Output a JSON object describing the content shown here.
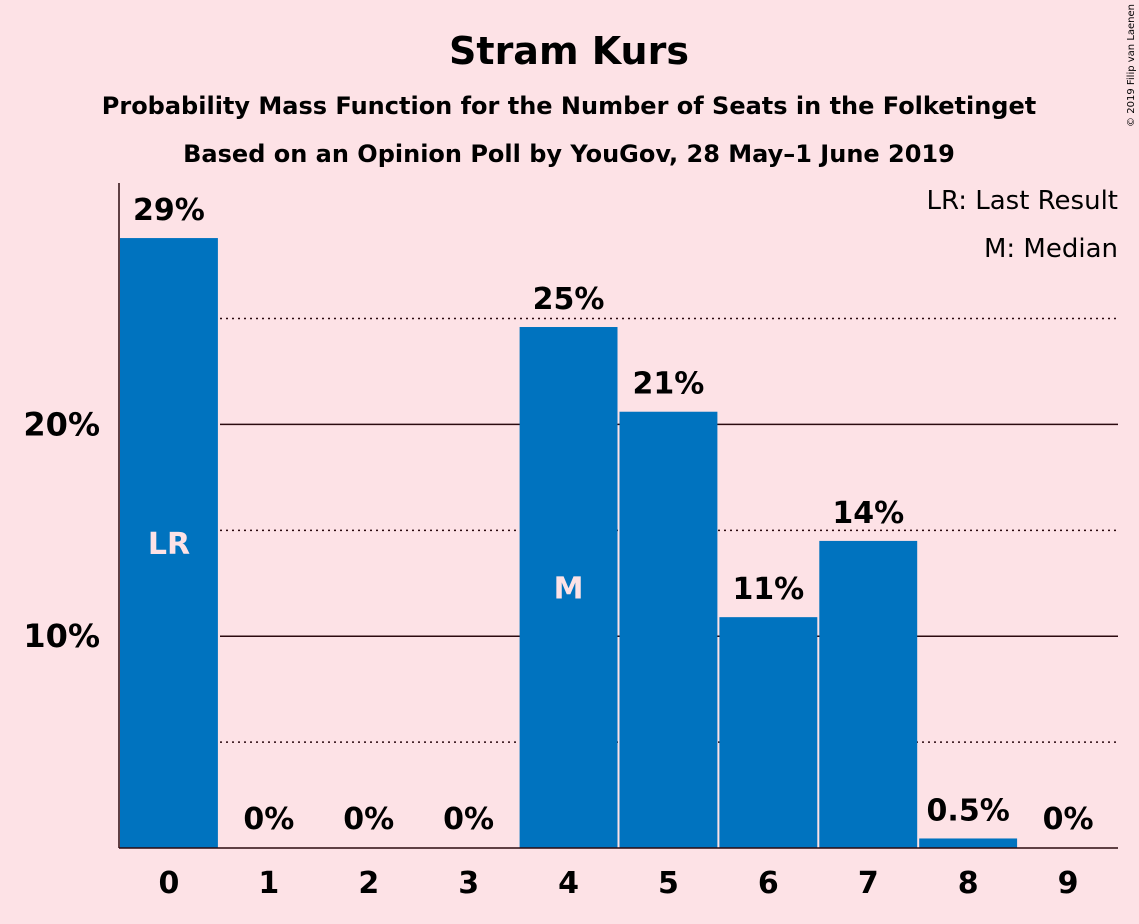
{
  "chart_data": {
    "type": "bar",
    "title": "Stram Kurs",
    "subtitle": "Probability Mass Function for the Number of Seats in the Folketinget",
    "subtitle2": "Based on an Opinion Poll by YouGov, 28 May–1 June 2019",
    "copyright": "© 2019 Filip van Laenen",
    "legend": [
      "LR: Last Result",
      "M: Median"
    ],
    "legend_position": "top-right",
    "categories": [
      "0",
      "1",
      "2",
      "3",
      "4",
      "5",
      "6",
      "7",
      "8",
      "9"
    ],
    "values": [
      28.8,
      0,
      0,
      0,
      24.6,
      20.6,
      10.9,
      14.5,
      0.45,
      0
    ],
    "data_labels": [
      "29%",
      "0%",
      "0%",
      "0%",
      "25%",
      "21%",
      "11%",
      "14%",
      "0.5%",
      "0%"
    ],
    "bar_markers": [
      {
        "index": 0,
        "text": "LR"
      },
      {
        "index": 4,
        "text": "M"
      }
    ],
    "yticks": [
      {
        "value": 10,
        "label": "10%"
      },
      {
        "value": 20,
        "label": "20%"
      }
    ],
    "minor_gridlines": [
      5,
      15,
      25
    ],
    "ylim": [
      0,
      31.4
    ],
    "colors": {
      "bar": "#0073bf",
      "background": "#fde2e6",
      "text": "#2b0a0f"
    }
  }
}
